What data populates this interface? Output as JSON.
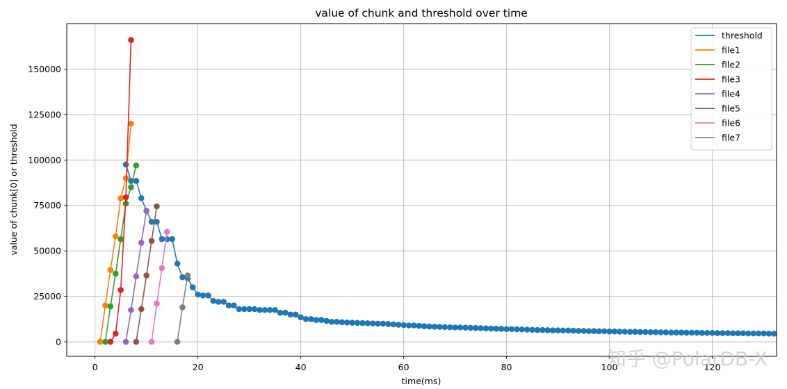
{
  "chart_data": {
    "type": "line",
    "title": "value of chunk and threshold over time",
    "xlabel": "time(ms)",
    "ylabel": "value of chunk[0] or threshold",
    "xlim": [
      -5.5,
      132.5
    ],
    "ylim": [
      -8000,
      175000
    ],
    "xticks": [
      0,
      20,
      40,
      60,
      80,
      100,
      120
    ],
    "yticks": [
      0,
      25000,
      50000,
      75000,
      100000,
      125000,
      150000
    ],
    "ytick_labels": [
      "0",
      "25000",
      "50000",
      "75000",
      "100000",
      "125000",
      "150000"
    ],
    "grid": true,
    "legend_position": "top-right",
    "markers": true,
    "series": [
      {
        "name": "threshold",
        "color": "#1f77b4",
        "x": [
          6,
          7,
          8,
          9,
          10,
          11,
          12,
          13,
          14,
          15,
          16,
          17,
          18,
          19,
          20,
          21,
          22,
          23,
          24,
          25,
          26,
          27,
          28,
          29,
          30,
          31,
          32,
          33,
          34,
          35,
          36,
          37,
          38,
          39,
          40,
          41,
          42,
          43,
          44,
          45,
          46,
          47,
          48,
          49,
          50,
          51,
          52,
          53,
          54,
          55,
          56,
          57,
          58,
          59,
          60,
          61,
          62,
          63,
          64,
          65,
          66,
          67,
          68,
          69,
          70,
          71,
          72,
          73,
          74,
          75,
          76,
          77,
          78,
          79,
          80,
          81,
          82,
          83,
          84,
          85,
          86,
          87,
          88,
          89,
          90,
          91,
          92,
          93,
          94,
          95,
          96,
          97,
          98,
          99,
          100,
          101,
          102,
          103,
          104,
          105,
          106,
          107,
          108,
          109,
          110,
          111,
          112,
          113,
          114,
          115,
          116,
          117,
          118,
          119,
          120,
          121,
          122,
          123,
          124,
          125,
          126,
          127,
          128,
          129,
          130,
          131,
          132
        ],
        "y": [
          97500,
          88500,
          88500,
          79000,
          72000,
          66000,
          66000,
          56500,
          56500,
          56500,
          43000,
          35500,
          35000,
          30000,
          26000,
          25500,
          25500,
          22500,
          22000,
          22000,
          20000,
          20000,
          18000,
          18000,
          18000,
          18000,
          17500,
          17500,
          17500,
          17500,
          16000,
          16000,
          15000,
          15000,
          13500,
          12500,
          12500,
          12000,
          12000,
          11500,
          11000,
          11000,
          10800,
          10600,
          10500,
          10400,
          10300,
          10200,
          10100,
          10000,
          10000,
          9800,
          9600,
          9400,
          9200,
          9000,
          9000,
          8800,
          8600,
          8400,
          8300,
          8200,
          8100,
          8000,
          7900,
          7900,
          7800,
          7700,
          7600,
          7500,
          7400,
          7300,
          7200,
          7100,
          7000,
          7000,
          6900,
          6800,
          6700,
          6600,
          6500,
          6500,
          6400,
          6300,
          6300,
          6200,
          6200,
          6100,
          6000,
          6000,
          5900,
          5900,
          5800,
          5800,
          5700,
          5700,
          5600,
          5600,
          5500,
          5500,
          5400,
          5400,
          5300,
          5300,
          5200,
          5200,
          5100,
          5100,
          5100,
          5000,
          5000,
          5000,
          4900,
          4900,
          4900,
          4800,
          4800,
          4800,
          4700,
          4700,
          4700,
          4600,
          4600,
          4600,
          4600,
          4500,
          4500
        ]
      },
      {
        "name": "file1",
        "color": "#ff7f0e",
        "x": [
          1,
          2,
          3,
          4,
          5,
          6,
          7
        ],
        "y": [
          0,
          20000,
          39500,
          58000,
          79000,
          90000,
          120000
        ]
      },
      {
        "name": "file2",
        "color": "#2ca02c",
        "x": [
          2,
          3,
          4,
          5,
          6,
          7,
          8
        ],
        "y": [
          0,
          19500,
          37500,
          56500,
          76000,
          85000,
          97000
        ]
      },
      {
        "name": "file3",
        "color": "#d62728",
        "x": [
          3,
          4,
          5,
          6,
          7
        ],
        "y": [
          0,
          4500,
          28500,
          79500,
          166000
        ]
      },
      {
        "name": "file4",
        "color": "#9467bd",
        "x": [
          6,
          7,
          8,
          9,
          10
        ],
        "y": [
          0,
          17500,
          36000,
          54500,
          72000
        ]
      },
      {
        "name": "file5",
        "color": "#8c564b",
        "x": [
          8,
          9,
          10,
          11,
          12
        ],
        "y": [
          0,
          18000,
          36500,
          55500,
          74500
        ]
      },
      {
        "name": "file6",
        "color": "#e377c2",
        "x": [
          11,
          12,
          13,
          14
        ],
        "y": [
          0,
          21000,
          40500,
          60500
        ]
      },
      {
        "name": "file7",
        "color": "#7f7f7f",
        "x": [
          16,
          17,
          18
        ],
        "y": [
          0,
          19000,
          36500
        ]
      }
    ]
  },
  "watermark": "知乎 @PolarDB-X"
}
